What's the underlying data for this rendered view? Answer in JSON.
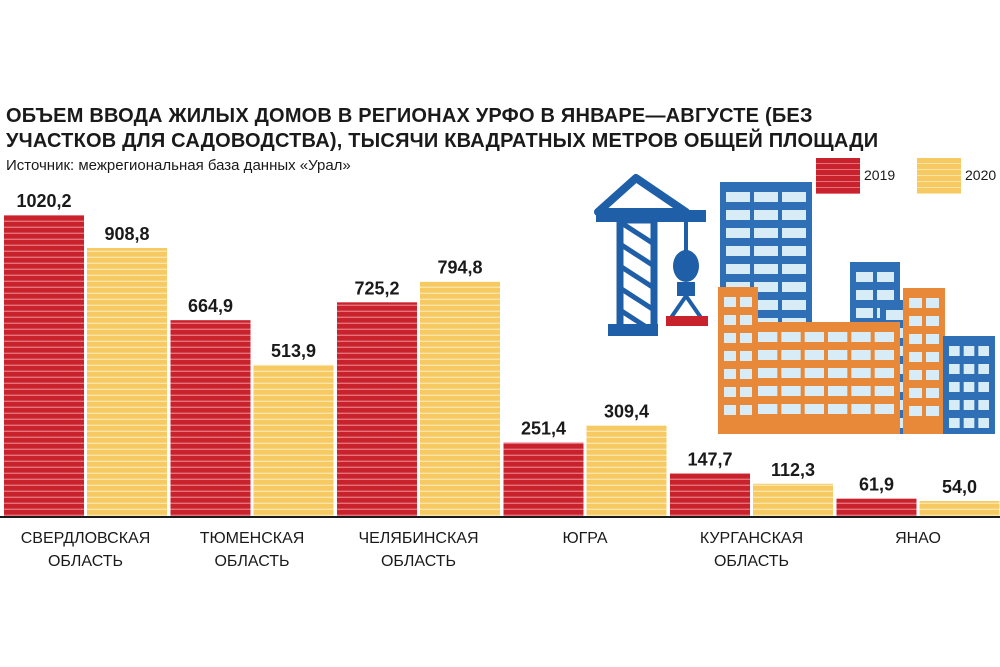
{
  "chart_data": {
    "type": "bar",
    "title": "ОБЪЕМ ВВОДА ЖИЛЫХ ДОМОВ В РЕГИОНАХ УРФО В ЯНВАРЕ—АВГУСТЕ (БЕЗ УЧАСТКОВ ДЛЯ САДОВОДСТВА), ТЫСЯЧИ КВАДРАТНЫХ МЕТРОВ ОБЩЕЙ ПЛОЩАДИ",
    "source": "Источник: межрегиональная база данных «Урал»",
    "categories": [
      [
        "СВЕРДЛОВСКАЯ",
        "ОБЛАСТЬ"
      ],
      [
        "ТЮМЕНСКАЯ",
        "ОБЛАСТЬ"
      ],
      [
        "ЧЕЛЯБИНСКАЯ",
        "ОБЛАСТЬ"
      ],
      [
        "ЮГРА"
      ],
      [
        "КУРГАНСКАЯ",
        "ОБЛАСТЬ"
      ],
      [
        "ЯНАО"
      ]
    ],
    "series": [
      {
        "name": "2019",
        "values": [
          1020.2,
          664.9,
          725.2,
          251.4,
          147.7,
          61.9
        ],
        "labels": [
          "1020,2",
          "664,9",
          "725,2",
          "251,4",
          "147,7",
          "61,9"
        ],
        "color": "#c8222c",
        "stripe": "#e8707a"
      },
      {
        "name": "2020",
        "values": [
          908.8,
          513.9,
          794.8,
          309.4,
          112.3,
          54.0
        ],
        "labels": [
          "908,8",
          "513,9",
          "794,8",
          "309,4",
          "112,3",
          "54,0"
        ],
        "color": "#f6c963",
        "stripe": "#fbe5a6"
      }
    ],
    "ylim": [
      0,
      1020.2
    ],
    "legend": "top-right",
    "grid": false
  },
  "illustration": {
    "crane_color": "#1f5fa8",
    "building_blue": "#2e6fb5",
    "building_orange": "#e8893a",
    "window_light": "#d7ecf7",
    "icon": "construction-icon"
  }
}
